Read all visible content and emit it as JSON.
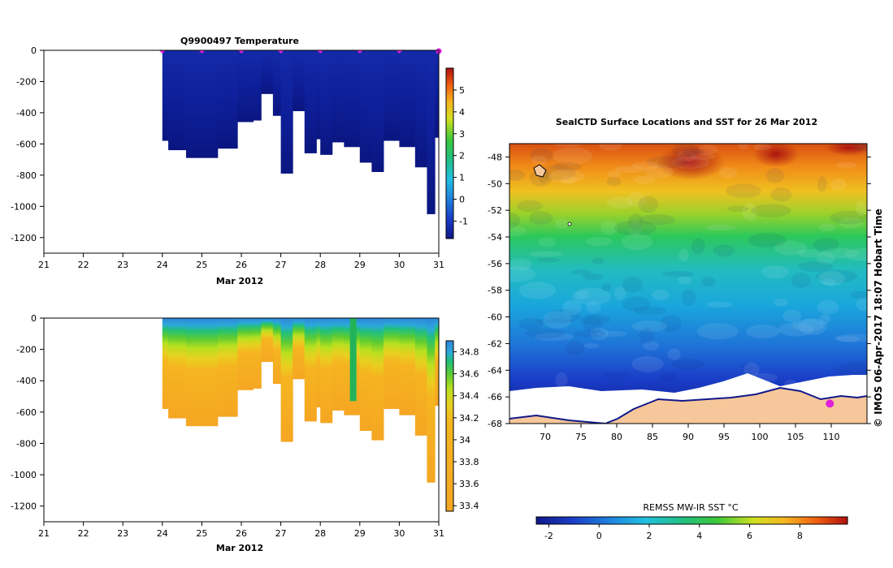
{
  "chart_data": [
    {
      "id": "temperature_section",
      "type": "heatmap",
      "title": "Q9900497  Temperature",
      "xlabel": "Mar 2012",
      "ylabel": "",
      "xlim": [
        21,
        31
      ],
      "ylim": [
        -1300,
        0
      ],
      "xticks": [
        21,
        22,
        23,
        24,
        25,
        26,
        27,
        28,
        29,
        30,
        31
      ],
      "yticks": [
        0,
        -200,
        -400,
        -600,
        -800,
        -1000,
        -1200
      ],
      "profile_dates": [
        24,
        25,
        26,
        27,
        28,
        29,
        30,
        31
      ],
      "colorbar": {
        "min": -1.8,
        "max": 6,
        "ticks": [
          -1,
          0,
          1,
          2,
          3,
          4,
          5
        ]
      },
      "profiles": [
        {
          "t": 24.0,
          "depth": 580
        },
        {
          "t": 24.15,
          "depth": 640
        },
        {
          "t": 24.6,
          "depth": 690
        },
        {
          "t": 25.1,
          "depth": 690
        },
        {
          "t": 25.4,
          "depth": 630
        },
        {
          "t": 25.9,
          "depth": 460
        },
        {
          "t": 26.3,
          "depth": 450
        },
        {
          "t": 26.5,
          "depth": 280
        },
        {
          "t": 26.8,
          "depth": 420
        },
        {
          "t": 27.0,
          "depth": 790
        },
        {
          "t": 27.3,
          "depth": 390
        },
        {
          "t": 27.6,
          "depth": 660
        },
        {
          "t": 27.9,
          "depth": 570
        },
        {
          "t": 28.0,
          "depth": 670
        },
        {
          "t": 28.3,
          "depth": 590
        },
        {
          "t": 28.6,
          "depth": 620
        },
        {
          "t": 29.0,
          "depth": 720
        },
        {
          "t": 29.3,
          "depth": 780
        },
        {
          "t": 29.6,
          "depth": 580
        },
        {
          "t": 30.0,
          "depth": 620
        },
        {
          "t": 30.4,
          "depth": 750
        },
        {
          "t": 30.7,
          "depth": 1050
        },
        {
          "t": 30.9,
          "depth": 560
        }
      ]
    },
    {
      "id": "salinity_section",
      "type": "heatmap",
      "title": "",
      "xlabel": "Mar 2012",
      "xlim": [
        21,
        31
      ],
      "ylim": [
        -1300,
        0
      ],
      "xticks": [
        21,
        22,
        23,
        24,
        25,
        26,
        27,
        28,
        29,
        30,
        31
      ],
      "yticks": [
        0,
        -200,
        -400,
        -600,
        -800,
        -1000,
        -1200
      ],
      "colorbar": {
        "min": 33.35,
        "max": 34.9,
        "ticks": [
          33.4,
          33.6,
          33.8,
          34,
          34.2,
          34.4,
          34.6,
          34.8
        ]
      }
    },
    {
      "id": "sst_map",
      "type": "heatmap",
      "title": "SealCTD Surface Locations and SST for 26 Mar 2012",
      "xlim": [
        65,
        115
      ],
      "ylim": [
        -68,
        -47
      ],
      "xticks": [
        70,
        75,
        80,
        85,
        90,
        95,
        100,
        105,
        110
      ],
      "yticks": [
        -48,
        -50,
        -52,
        -54,
        -56,
        -58,
        -60,
        -62,
        -64,
        -66,
        -68
      ],
      "colorbar": {
        "label": "REMSS MW-IR SST °C",
        "min": -2.5,
        "max": 9.9,
        "ticks": [
          -2,
          0,
          2,
          4,
          6,
          8
        ]
      },
      "seal_location": {
        "lon": 109.8,
        "lat": -66.5
      }
    }
  ],
  "side_text": "© IMOS 06-Apr-2017 18:07 Hobart Time",
  "colors": {
    "marker": "#e020d8",
    "land": "#f6c79a",
    "ice": "#ffffff"
  }
}
